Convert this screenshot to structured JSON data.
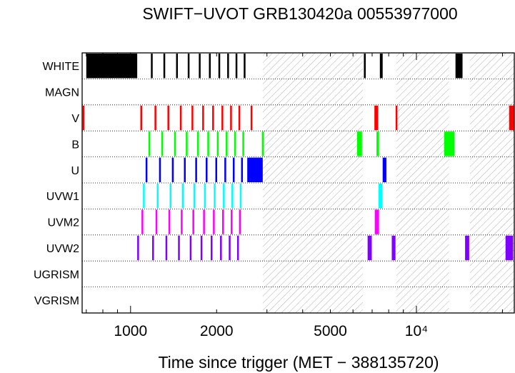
{
  "chart_data": {
    "type": "timeline",
    "title": "SWIFT−UVOT GRB130420a 00553977000",
    "xlabel": "Time since trigger (MET − 388135720)",
    "xscale": "log",
    "xlim": [
      677,
      22000
    ],
    "xticks": [
      {
        "value": 1000,
        "label": "1000"
      },
      {
        "value": 2000,
        "label": "2000"
      },
      {
        "value": 5000,
        "label": "5000"
      },
      {
        "value": 10000,
        "label": "10⁴"
      }
    ],
    "gaps": [
      [
        2900,
        6500
      ],
      [
        8500,
        13000
      ],
      [
        15400,
        22000
      ]
    ],
    "rows": [
      {
        "label": "WHITE",
        "color": "#000000",
        "intervals": [
          [
            700,
            1055
          ],
          [
            1178,
            1192
          ],
          [
            1303,
            1317
          ],
          [
            1443,
            1458
          ],
          [
            1585,
            1600
          ],
          [
            1733,
            1748
          ],
          [
            1880,
            1895
          ],
          [
            2029,
            2044
          ],
          [
            2178,
            2194
          ],
          [
            2330,
            2346
          ],
          [
            2488,
            2503
          ],
          [
            6550,
            6650
          ],
          [
            7450,
            7620
          ],
          [
            13700,
            14500
          ]
        ]
      },
      {
        "label": "MAGN",
        "color": "#000000",
        "intervals": []
      },
      {
        "label": "V",
        "color": "#ff0000",
        "intervals": [
          [
            680,
            688
          ],
          [
            1082,
            1097
          ],
          [
            1213,
            1228
          ],
          [
            1346,
            1361
          ],
          [
            1488,
            1503
          ],
          [
            1634,
            1649
          ],
          [
            1781,
            1796
          ],
          [
            1930,
            1945
          ],
          [
            2080,
            2096
          ],
          [
            2230,
            2245
          ],
          [
            2385,
            2400
          ],
          [
            2630,
            2650
          ],
          [
            7130,
            7350
          ],
          [
            8460,
            8540
          ],
          [
            21100,
            22000
          ]
        ]
      },
      {
        "label": "B",
        "color": "#00ff00",
        "intervals": [
          [
            1155,
            1172
          ],
          [
            1281,
            1296
          ],
          [
            1420,
            1435
          ],
          [
            1561,
            1576
          ],
          [
            1709,
            1724
          ],
          [
            1856,
            1871
          ],
          [
            2004,
            2020
          ],
          [
            2153,
            2169
          ],
          [
            2304,
            2320
          ],
          [
            2461,
            2476
          ],
          [
            2880,
            2900
          ],
          [
            6200,
            6450
          ],
          [
            7250,
            7400
          ],
          [
            12500,
            13600
          ]
        ]
      },
      {
        "label": "U",
        "color": "#0000ff",
        "intervals": [
          [
            1129,
            1144
          ],
          [
            1258,
            1273
          ],
          [
            1395,
            1410
          ],
          [
            1537,
            1552
          ],
          [
            1684,
            1699
          ],
          [
            1832,
            1847
          ],
          [
            1980,
            1995
          ],
          [
            2129,
            2144
          ],
          [
            2279,
            2294
          ],
          [
            2436,
            2451
          ],
          [
            2560,
            2900
          ],
          [
            7620,
            7850
          ]
        ]
      },
      {
        "label": "UVW1",
        "color": "#00ffff",
        "intervals": [
          [
            1105,
            1120
          ],
          [
            1235,
            1250
          ],
          [
            1370,
            1385
          ],
          [
            1512,
            1527
          ],
          [
            1659,
            1674
          ],
          [
            1807,
            1822
          ],
          [
            1955,
            1970
          ],
          [
            2104,
            2119
          ],
          [
            2254,
            2269
          ],
          [
            2410,
            2425
          ],
          [
            7370,
            7600
          ]
        ]
      },
      {
        "label": "UVM2",
        "color": "#ff00ff",
        "intervals": [
          [
            1092,
            1107
          ],
          [
            1223,
            1238
          ],
          [
            1357,
            1372
          ],
          [
            1499,
            1514
          ],
          [
            1646,
            1661
          ],
          [
            1794,
            1809
          ],
          [
            1942,
            1957
          ],
          [
            2091,
            2106
          ],
          [
            2241,
            2256
          ],
          [
            2396,
            2411
          ],
          [
            7150,
            7400
          ]
        ]
      },
      {
        "label": "UVW2",
        "color": "#8000ff",
        "intervals": [
          [
            1055,
            1070
          ],
          [
            1190,
            1205
          ],
          [
            1325,
            1340
          ],
          [
            1466,
            1481
          ],
          [
            1611,
            1626
          ],
          [
            1758,
            1773
          ],
          [
            1907,
            1922
          ],
          [
            2056,
            2071
          ],
          [
            2206,
            2221
          ],
          [
            2359,
            2374
          ],
          [
            6750,
            6980
          ],
          [
            8200,
            8450
          ],
          [
            14800,
            15300
          ],
          [
            20500,
            21800
          ]
        ]
      },
      {
        "label": "UGRISM",
        "color": "#000000",
        "intervals": []
      },
      {
        "label": "VGRISM",
        "color": "#000000",
        "intervals": []
      }
    ]
  }
}
